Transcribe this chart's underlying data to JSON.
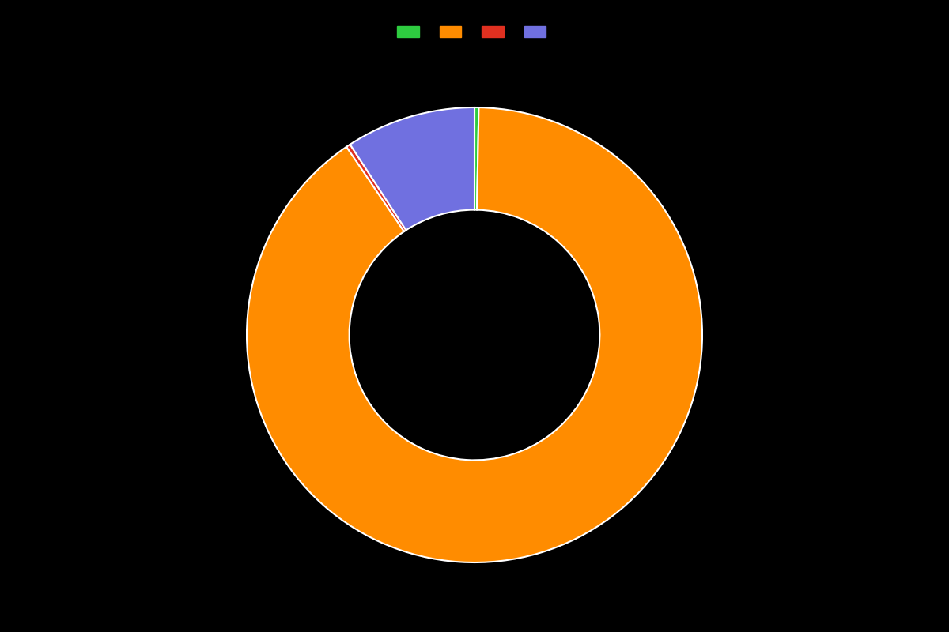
{
  "labels": [
    "",
    "",
    "",
    ""
  ],
  "values": [
    0.3,
    90.2,
    0.3,
    9.2
  ],
  "colors": [
    "#2ecc40",
    "#ff8c00",
    "#e03020",
    "#7070e0"
  ],
  "background_color": "#000000",
  "wedge_edge_color": "#ffffff",
  "wedge_linewidth": 1.5,
  "donut_width": 0.45,
  "figsize": [
    12.0,
    8.0
  ],
  "dpi": 100,
  "startangle": 90,
  "counterclock": false
}
